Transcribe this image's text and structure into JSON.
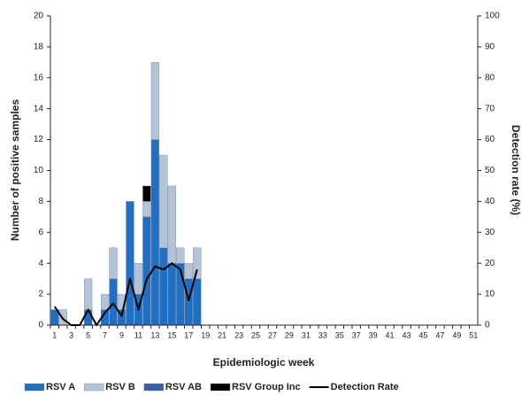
{
  "chart_data": {
    "type": "bar",
    "stacked": true,
    "x_label": "Epidemiologic week",
    "y_label": "Number of positive samples",
    "y2_label": "Detection rate (%)",
    "categories": [
      1,
      null,
      3,
      null,
      5,
      null,
      7,
      null,
      9,
      null,
      11,
      null,
      13,
      null,
      15,
      null,
      17,
      null,
      19,
      null,
      21,
      null,
      23,
      null,
      25,
      null,
      27,
      null,
      29,
      null,
      31,
      null,
      33,
      null,
      35,
      null,
      37,
      null,
      39,
      null,
      41,
      null,
      43,
      null,
      45,
      null,
      47,
      null,
      49,
      null,
      51
    ],
    "ylim": [
      0,
      20
    ],
    "yticks": [
      0,
      2,
      4,
      6,
      8,
      10,
      12,
      14,
      16,
      18,
      20
    ],
    "y2lim": [
      0,
      100
    ],
    "y2ticks": [
      0,
      10,
      20,
      30,
      40,
      50,
      60,
      70,
      80,
      90,
      100
    ],
    "series": [
      {
        "name": "RSV A",
        "color": "#1f6fc4",
        "values": [
          1,
          0,
          0,
          0,
          1,
          0,
          1,
          3,
          1,
          8,
          2,
          7,
          12,
          5,
          4,
          4,
          3,
          3,
          null,
          null,
          null,
          null,
          null,
          null,
          null,
          null,
          null,
          null,
          null,
          null,
          null,
          null,
          null,
          null,
          null,
          null,
          null,
          null,
          null,
          null,
          null,
          null,
          null,
          null,
          null,
          null,
          null,
          null,
          null,
          null,
          null
        ]
      },
      {
        "name": "RSV B",
        "color": "#b4c3d8",
        "values": [
          0,
          1,
          0,
          0,
          2,
          0,
          1,
          2,
          1,
          0,
          2,
          1,
          5,
          6,
          5,
          1,
          1,
          2,
          null,
          null,
          null,
          null,
          null,
          null,
          null,
          null,
          null,
          null,
          null,
          null,
          null,
          null,
          null,
          null,
          null,
          null,
          null,
          null,
          null,
          null,
          null,
          null,
          null,
          null,
          null,
          null,
          null,
          null,
          null,
          null,
          null
        ]
      },
      {
        "name": "RSV AB",
        "color": "#3b5fa6",
        "values": [
          0,
          0,
          0,
          0,
          0,
          0,
          0,
          0,
          0,
          0,
          0,
          0,
          0,
          0,
          0,
          0,
          0,
          0,
          null,
          null,
          null,
          null,
          null,
          null,
          null,
          null,
          null,
          null,
          null,
          null,
          null,
          null,
          null,
          null,
          null,
          null,
          null,
          null,
          null,
          null,
          null,
          null,
          null,
          null,
          null,
          null,
          null,
          null,
          null,
          null,
          null
        ]
      },
      {
        "name": "RSV Group Inc",
        "color": "#000000",
        "values": [
          0,
          0,
          0,
          0,
          0,
          0,
          0,
          0,
          0,
          0,
          0,
          1,
          0,
          0,
          0,
          0,
          0,
          0,
          null,
          null,
          null,
          null,
          null,
          null,
          null,
          null,
          null,
          null,
          null,
          null,
          null,
          null,
          null,
          null,
          null,
          null,
          null,
          null,
          null,
          null,
          null,
          null,
          null,
          null,
          null,
          null,
          null,
          null,
          null,
          null,
          null
        ]
      },
      {
        "name": "Detection Rate",
        "type": "line",
        "axis": "y2",
        "color": "#000000",
        "values": [
          6,
          2,
          0,
          0,
          5,
          0,
          4,
          7,
          3,
          15,
          5,
          15,
          19,
          18,
          20,
          18,
          8,
          18,
          null,
          null,
          null,
          null,
          null,
          null,
          null,
          null,
          null,
          null,
          null,
          null,
          null,
          null,
          null,
          null,
          null,
          null,
          null,
          null,
          null,
          null,
          null,
          null,
          null,
          null,
          null,
          null,
          null,
          null,
          null,
          null,
          null
        ]
      }
    ]
  }
}
